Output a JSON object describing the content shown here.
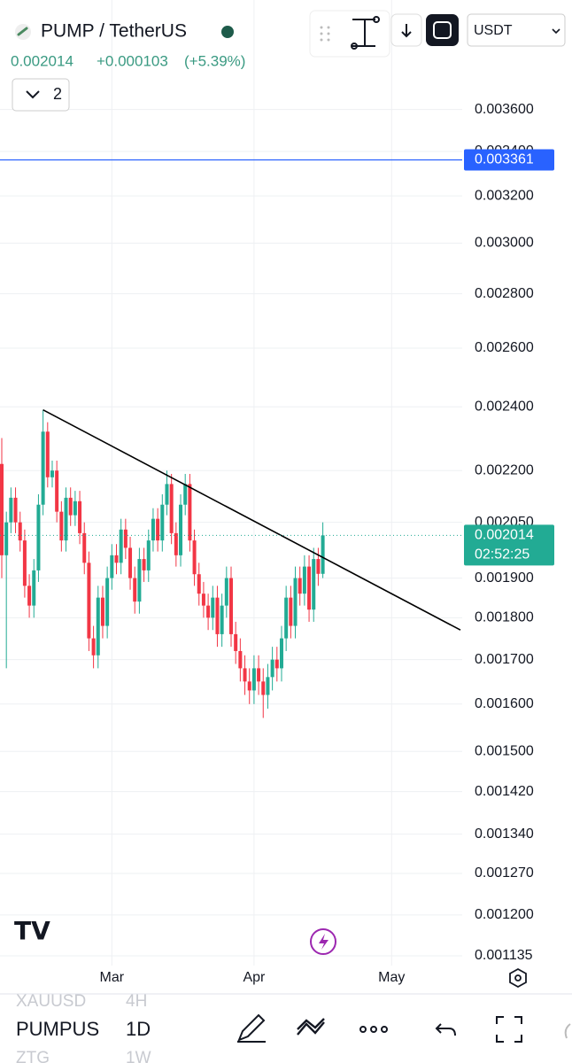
{
  "header": {
    "symbol": "PUMP / TetherUS",
    "last": "0.002014",
    "change": "+0.000103",
    "change_pct": "(+5.39%)",
    "indicators": "2",
    "currency": "USDT"
  },
  "bottom": {
    "symbols": [
      {
        "name": "XAUUSD",
        "interval": "4H"
      },
      {
        "name": "PUMPUS",
        "interval": "1D"
      },
      {
        "name": "ZTG",
        "interval": "1W"
      }
    ]
  },
  "chart_data": {
    "type": "candlestick",
    "log_scale": true,
    "grid": true,
    "up_color": "#22ab94",
    "down_color": "#f23645",
    "categories": [
      null,
      null,
      null,
      null,
      null,
      null,
      null,
      null,
      null,
      null,
      null,
      null,
      null,
      null,
      null,
      null,
      null,
      null,
      null,
      null,
      null,
      null,
      null,
      null,
      "Mar",
      null,
      null,
      null,
      null,
      null,
      null,
      null,
      null,
      null,
      null,
      null,
      null,
      null,
      null,
      null,
      null,
      null,
      null,
      null,
      null,
      null,
      null,
      null,
      null,
      null,
      null,
      null,
      null,
      null,
      null,
      "Apr",
      null,
      null,
      null,
      null,
      null,
      null,
      null,
      null,
      null,
      null,
      null,
      null,
      null,
      null,
      null,
      null,
      null,
      null,
      null,
      null,
      null,
      null,
      null,
      null,
      null,
      null,
      null,
      null,
      null,
      "May",
      null,
      null,
      null,
      null,
      null,
      null,
      null,
      null,
      null,
      null,
      null,
      null,
      null,
      null,
      null
    ],
    "open": [
      0.00222,
      0.00196,
      0.00205,
      0.00212,
      0.00205,
      0.002,
      0.00188,
      0.00183,
      0.00192,
      0.0021,
      0.00232,
      0.00218,
      0.0022,
      0.00208,
      0.002,
      0.00212,
      0.00207,
      0.00211,
      0.00202,
      0.00194,
      0.00175,
      0.00171,
      0.00185,
      0.00178,
      0.0019,
      0.00196,
      0.00194,
      0.00203,
      0.00198,
      0.0019,
      0.00184,
      0.00195,
      0.00192,
      0.002,
      0.00206,
      0.002,
      0.0021,
      0.00216,
      0.00202,
      0.00196,
      0.0021,
      0.00216,
      0.002,
      0.00191,
      0.00186,
      0.00183,
      0.0018,
      0.00185,
      0.00176,
      0.00183,
      0.0019,
      0.00176,
      0.00172,
      0.00168,
      0.00165,
      0.00163,
      0.00168,
      0.00165,
      0.00162,
      0.00166,
      0.0017,
      0.00168,
      0.00175,
      0.00185,
      0.00178,
      0.0019,
      0.00186,
      0.00193,
      0.00182,
      0.00195,
      0.001911,
      null,
      null,
      null,
      null,
      null,
      null,
      null,
      null,
      null,
      null,
      null,
      null,
      null,
      null,
      null,
      null,
      null,
      null,
      null,
      null,
      null,
      null,
      null,
      null,
      null,
      null,
      null,
      null,
      null,
      null
    ],
    "high": [
      0.0023,
      0.00208,
      0.00215,
      0.00215,
      0.00208,
      0.00203,
      0.00191,
      0.00195,
      0.00213,
      0.00239,
      0.00235,
      0.00223,
      0.00223,
      0.00211,
      0.00215,
      0.00215,
      0.00214,
      0.00214,
      0.00205,
      0.00197,
      0.00178,
      0.00188,
      0.00188,
      0.00193,
      0.00199,
      0.00199,
      0.00206,
      0.00206,
      0.00201,
      0.00193,
      0.00198,
      0.00198,
      0.00203,
      0.00209,
      0.00209,
      0.00213,
      0.0022,
      0.00219,
      0.00205,
      0.00213,
      0.00219,
      0.00219,
      0.00203,
      0.00194,
      0.00189,
      0.00186,
      0.00188,
      0.00188,
      0.00186,
      0.00193,
      0.00193,
      0.00179,
      0.00175,
      0.00171,
      0.00168,
      0.00171,
      0.00171,
      0.00168,
      0.00169,
      0.00173,
      0.00173,
      0.00178,
      0.00188,
      0.00188,
      0.00193,
      0.00193,
      0.00196,
      0.00196,
      0.00198,
      0.00198,
      0.00205,
      null,
      null,
      null,
      null,
      null,
      null,
      null,
      null,
      null,
      null,
      null,
      null,
      null,
      null,
      null,
      null,
      null,
      null,
      null,
      null,
      null,
      null,
      null,
      null,
      null,
      null,
      null,
      null,
      null,
      null
    ],
    "low": [
      0.0019,
      0.00168,
      0.00202,
      0.00202,
      0.00197,
      0.00185,
      0.0018,
      0.0018,
      0.00189,
      0.00207,
      0.00215,
      0.00215,
      0.00205,
      0.00197,
      0.00197,
      0.00204,
      0.00204,
      0.00199,
      0.00191,
      0.00172,
      0.00168,
      0.00168,
      0.00175,
      0.00175,
      0.00187,
      0.00191,
      0.00191,
      0.00195,
      0.00187,
      0.00181,
      0.00181,
      0.00189,
      0.00189,
      0.00197,
      0.00197,
      0.00197,
      0.00207,
      0.00199,
      0.00193,
      0.00193,
      0.00207,
      0.00197,
      0.00188,
      0.00183,
      0.0018,
      0.00177,
      0.00177,
      0.00173,
      0.00173,
      0.0018,
      0.00173,
      0.00169,
      0.00165,
      0.00162,
      0.0016,
      0.0016,
      0.00162,
      0.00157,
      0.00159,
      0.00163,
      0.00165,
      0.00165,
      0.00172,
      0.00175,
      0.00175,
      0.00183,
      0.00183,
      0.00179,
      0.00179,
      0.00188,
      0.0019,
      null,
      null,
      null,
      null,
      null,
      null,
      null,
      null,
      null,
      null,
      null,
      null,
      null,
      null,
      null,
      null,
      null,
      null,
      null,
      null,
      null,
      null,
      null,
      null,
      null,
      null,
      null,
      null,
      null,
      null
    ],
    "close": [
      0.00196,
      0.00205,
      0.00212,
      0.00205,
      0.002,
      0.00188,
      0.00183,
      0.00192,
      0.0021,
      0.00232,
      0.00218,
      0.0022,
      0.00208,
      0.002,
      0.00212,
      0.00207,
      0.00211,
      0.00202,
      0.00194,
      0.00175,
      0.00171,
      0.00185,
      0.00178,
      0.0019,
      0.00196,
      0.00194,
      0.00203,
      0.00198,
      0.0019,
      0.00184,
      0.00195,
      0.00192,
      0.002,
      0.00206,
      0.002,
      0.0021,
      0.00216,
      0.00202,
      0.00196,
      0.0021,
      0.00216,
      0.002,
      0.00191,
      0.00186,
      0.00183,
      0.0018,
      0.00185,
      0.00176,
      0.00183,
      0.0019,
      0.00176,
      0.00172,
      0.00168,
      0.00165,
      0.00163,
      0.00168,
      0.00165,
      0.00162,
      0.00166,
      0.0017,
      0.00168,
      0.00175,
      0.00185,
      0.00178,
      0.0019,
      0.00186,
      0.00193,
      0.00182,
      0.00195,
      0.001911,
      0.002014,
      null,
      null,
      null,
      null,
      null,
      null,
      null,
      null,
      null,
      null,
      null,
      null,
      null,
      null,
      null,
      null,
      null,
      null,
      null,
      null,
      null,
      null,
      null,
      null,
      null,
      null,
      null,
      null,
      null,
      null
    ],
    "ylim": [
      0.00112,
      0.00418
    ],
    "yticks": [
      {
        "value": 0.0036,
        "label": "0.003600"
      },
      {
        "value": 0.0034,
        "label": "0.003400"
      },
      {
        "value": 0.0032,
        "label": "0.003200"
      },
      {
        "value": 0.003,
        "label": "0.003000"
      },
      {
        "value": 0.0028,
        "label": "0.002800"
      },
      {
        "value": 0.0026,
        "label": "0.002600"
      },
      {
        "value": 0.0024,
        "label": "0.002400"
      },
      {
        "value": 0.0022,
        "label": "0.002200"
      },
      {
        "value": 0.00205,
        "label": "0.002050"
      },
      {
        "value": 0.0019,
        "label": "0.001900"
      },
      {
        "value": 0.0018,
        "label": "0.001800"
      },
      {
        "value": 0.0017,
        "label": "0.001700"
      },
      {
        "value": 0.0016,
        "label": "0.001600"
      },
      {
        "value": 0.0015,
        "label": "0.001500"
      },
      {
        "value": 0.00142,
        "label": "0.001420"
      },
      {
        "value": 0.00134,
        "label": "0.001340"
      },
      {
        "value": 0.00127,
        "label": "0.001270"
      },
      {
        "value": 0.0012,
        "label": "0.001200"
      },
      {
        "value": 0.001135,
        "label": "0.001135"
      }
    ],
    "alert_line": {
      "value": 0.003361,
      "color": "#2962ff"
    },
    "last_price": {
      "value": 0.002014,
      "color": "#22ab94"
    },
    "countdown": "02:52:25",
    "trendline": {
      "from": {
        "index": 9,
        "value": 0.00239
      },
      "to": {
        "index": 100,
        "value": 0.00177
      },
      "color": "#000000"
    }
  }
}
